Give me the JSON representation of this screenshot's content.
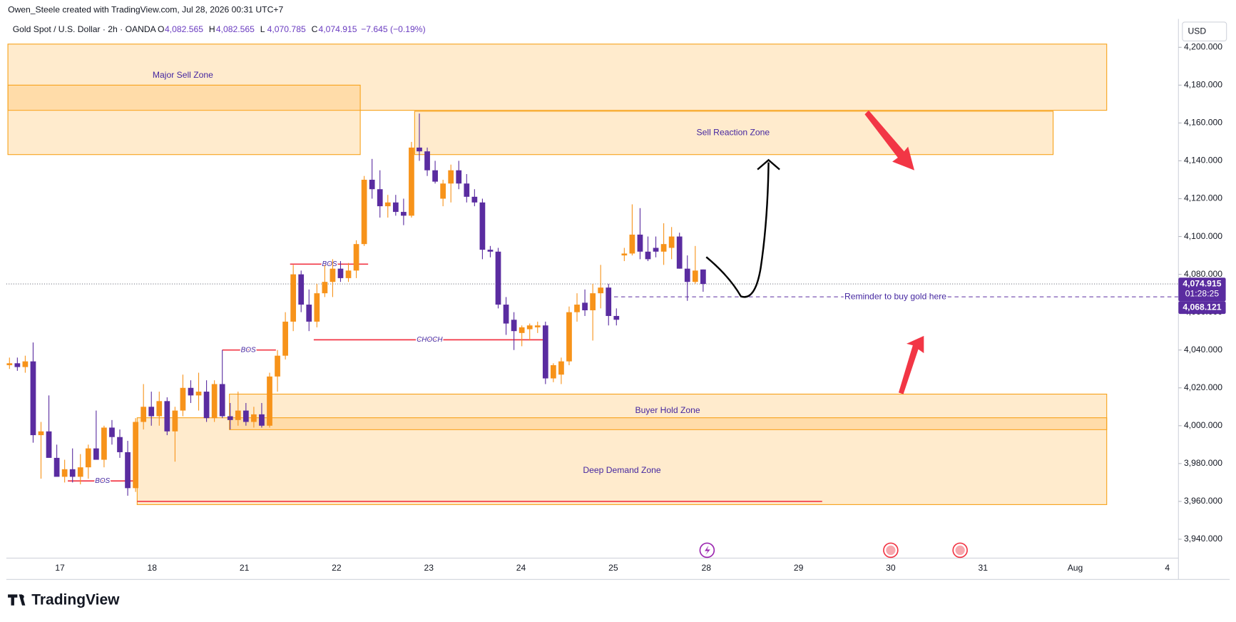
{
  "header": {
    "credit": "Owen_Steele created with TradingView.com, Jul 28, 2026 00:31 UTC+7",
    "symbol": "Gold Spot / U.S. Dollar · 2h · OANDA",
    "ohlc": [
      {
        "label": "O",
        "value": "4,082.565"
      },
      {
        "label": "H",
        "value": "4,082.565"
      },
      {
        "label": "L",
        "value": "4,070.785"
      },
      {
        "label": "C",
        "value": "4,074.915"
      }
    ],
    "change": "−7.645 (−0.19%)",
    "currency": "USD",
    "brand": "TradingView"
  },
  "chart_data": {
    "type": "candlestick",
    "up_color": "#f7931a",
    "down_color": "#5a2ca0",
    "ylim": [
      3930,
      4212.5
    ],
    "yticks": [
      {
        "value": 3940,
        "label": "3,940.000"
      },
      {
        "value": 3960,
        "label": "3,960.000"
      },
      {
        "value": 3980,
        "label": "3,980.000"
      },
      {
        "value": 4000,
        "label": "4,000.000"
      },
      {
        "value": 4020,
        "label": "4,020.000"
      },
      {
        "value": 4040,
        "label": "4,040.000"
      },
      {
        "value": 4060,
        "label": "4,060.000"
      },
      {
        "value": 4080,
        "label": "4,080.000"
      },
      {
        "value": 4100,
        "label": "4,100.000"
      },
      {
        "value": 4120,
        "label": "4,120.000"
      },
      {
        "value": 4140,
        "label": "4,140.000"
      },
      {
        "value": 4160,
        "label": "4,160.000"
      },
      {
        "value": 4180,
        "label": "4,180.000"
      },
      {
        "value": 4200,
        "label": "4,200.000"
      }
    ],
    "xtick_labels": [
      "17",
      "18",
      "21",
      "22",
      "23",
      "24",
      "25",
      "28",
      "29",
      "30",
      "31",
      "Aug",
      "4"
    ],
    "candles": {
      "open": [
        4032,
        4033,
        4031,
        4034,
        3995,
        3997,
        3983,
        3973,
        3977,
        3973,
        3978,
        3988,
        3982,
        3999,
        3994,
        3986,
        3967,
        4002,
        4010,
        4005,
        4013,
        3997,
        4008,
        4020,
        4016,
        4018,
        4004,
        4022,
        4005,
        4003,
        4008,
        4002,
        4006,
        4000,
        4026,
        4037,
        4055,
        4080,
        4064,
        4055,
        4070,
        4076,
        4083,
        4078,
        4082,
        4096,
        4130,
        4125,
        4116,
        4118,
        4113,
        4111,
        4147,
        4145,
        4135,
        4120,
        4128,
        4135,
        4128,
        4121,
        4118,
        4093,
        4092,
        4064,
        4056,
        4049,
        4051,
        4052,
        4053,
        4025,
        4027,
        4034,
        4060,
        4065,
        4061,
        4070,
        4073,
        4058,
        4090,
        4091,
        4101,
        4092,
        4094,
        4092,
        4094,
        4100,
        4083,
        4076,
        4082.565
      ],
      "high": [
        4036,
        4036,
        4037,
        4044,
        4002,
        4016,
        3990,
        3982,
        3988,
        3985,
        3990,
        4008,
        4000,
        4003,
        3998,
        3992,
        4004,
        4022,
        4018,
        4018,
        4015,
        4010,
        4027,
        4024,
        4028,
        4024,
        4024,
        4040,
        4012,
        4018,
        4012,
        4010,
        4012,
        4028,
        4040,
        4060,
        4085,
        4082,
        4072,
        4075,
        4085,
        4088,
        4087,
        4086,
        4098,
        4132,
        4141,
        4135,
        4122,
        4122,
        4120,
        4150,
        4165,
        4147,
        4140,
        4130,
        4138,
        4140,
        4133,
        4125,
        4120,
        4095,
        4094,
        4068,
        4060,
        4053,
        4054,
        4055,
        4055,
        4033,
        4036,
        4063,
        4070,
        4072,
        4075,
        4085,
        4075,
        4062,
        4094,
        4117,
        4115,
        4100,
        4100,
        4107,
        4105,
        4102,
        4090,
        4095,
        4082.565
      ],
      "low": [
        4030,
        4029,
        4028,
        3991,
        3972,
        3985,
        3975,
        3970,
        3970,
        3969,
        3972,
        3983,
        3978,
        3990,
        3983,
        3963,
        3965,
        3998,
        4000,
        4000,
        3995,
        3981,
        4005,
        4012,
        4008,
        4002,
        4002,
        4004,
        3998,
        4000,
        4000,
        3999,
        3999,
        3999,
        4018,
        4035,
        4050,
        4060,
        4050,
        4052,
        4068,
        4068,
        4076,
        4076,
        4078,
        4095,
        4120,
        4110,
        4110,
        4111,
        4106,
        4110,
        4140,
        4132,
        4128,
        4116,
        4118,
        4125,
        4118,
        4116,
        4088,
        4089,
        4062,
        4048,
        4040,
        4042,
        4045,
        4049,
        4022,
        4023,
        4022,
        4032,
        4055,
        4058,
        4045,
        4062,
        4053,
        4053,
        4087,
        4090,
        4088,
        4087,
        4089,
        4085,
        4088,
        4083,
        4066,
        4075,
        4070.785
      ],
      "close": [
        4033,
        4031,
        4034,
        3995,
        3997,
        3983,
        3973,
        3977,
        3973,
        3978,
        3988,
        3982,
        3999,
        3994,
        3986,
        3967,
        4002,
        4010,
        4005,
        4013,
        3997,
        4008,
        4020,
        4016,
        4018,
        4004,
        4022,
        4005,
        4003,
        4008,
        4002,
        4006,
        4000,
        4026,
        4037,
        4055,
        4080,
        4064,
        4055,
        4070,
        4076,
        4083,
        4078,
        4082,
        4096,
        4130,
        4125,
        4116,
        4118,
        4113,
        4111,
        4147,
        4145,
        4135,
        4129,
        4128,
        4135,
        4128,
        4121,
        4118,
        4093,
        4092,
        4064,
        4054,
        4050,
        4052,
        4053,
        4053,
        4025,
        4032,
        4034,
        4060,
        4064,
        4061,
        4070,
        4073,
        4058,
        4056,
        4091,
        4101,
        4092,
        4088,
        4092,
        4096,
        4100,
        4083,
        4076,
        4082,
        4074.915
      ]
    },
    "zones": [
      {
        "label": "Major Sell Zone",
        "top": 4201.7,
        "bottom": 4166.7
      },
      {
        "top": 4180,
        "bottom": 4143.3
      },
      {
        "label": "Sell Reaction Zone",
        "top": 4166.2,
        "bottom": 4143.3
      },
      {
        "label": "Buyer Hold Zone",
        "top": 4016.7,
        "bottom": 3997.9
      },
      {
        "label": "Deep Demand Zone",
        "top": 4004.2,
        "bottom": 3958.3
      }
    ],
    "structure_lines": [
      {
        "label": "BOS",
        "value": 4085.4
      },
      {
        "label": "BOS",
        "value": 4040
      },
      {
        "label": "BOS",
        "value": 3970.8
      },
      {
        "label": "CHOCH",
        "value": 4045.4
      },
      {
        "value": 3960
      }
    ],
    "reminder": {
      "label": "Reminder to buy gold here",
      "value": 4068.121,
      "tag": "4,068.121"
    },
    "last_price": {
      "value": 4074.915,
      "label": "4,074.915",
      "countdown": "01:28:25"
    }
  }
}
